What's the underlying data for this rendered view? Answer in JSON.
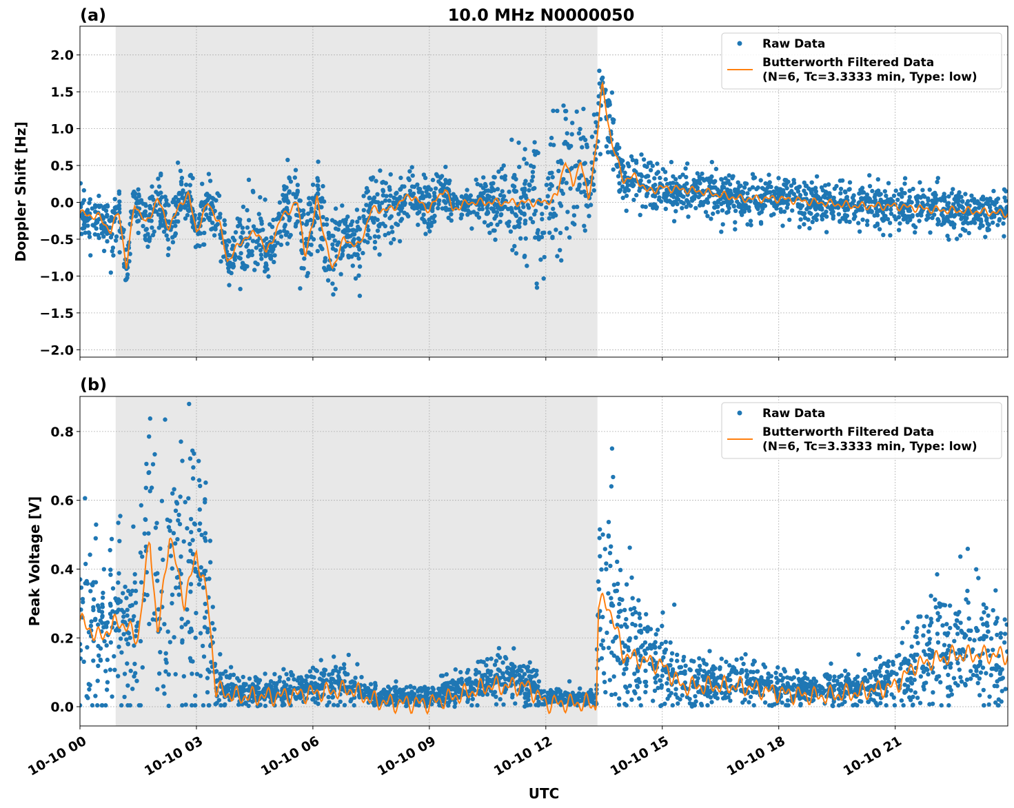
{
  "chart_data": [
    {
      "panel_label": "(a)",
      "type": "scatter+line",
      "title": "10.0 MHz N0000050",
      "xlabel": "",
      "ylabel": "Doppler Shift [Hz]",
      "xlim_hours": [
        0,
        23.9
      ],
      "ylim": [
        -2.1,
        2.39
      ],
      "yticks": [
        -2.0,
        -1.5,
        -1.0,
        -0.5,
        0.0,
        0.5,
        1.0,
        1.5,
        2.0
      ],
      "ytick_labels": [
        "−2.0",
        "−1.5",
        "−1.0",
        "−0.5",
        "0.0",
        "0.5",
        "1.0",
        "1.5",
        "2.0"
      ],
      "grid": true,
      "shaded_interval_hours": [
        0.92,
        13.33
      ],
      "legend": {
        "placement": "top-right",
        "entries": [
          "Raw Data",
          "Butterworth Filtered Data",
          "(N=6, Tc=3.3333 min, Type: low)"
        ]
      },
      "colors": {
        "raw": "#1f77b4",
        "filtered": "#ff7f0e",
        "shade": "#e8e8e8"
      },
      "filtered_series": {
        "x_hours": [
          0,
          0.5,
          0.8,
          1.0,
          1.2,
          1.4,
          1.7,
          2.0,
          2.3,
          2.6,
          2.8,
          3.0,
          3.3,
          3.6,
          3.8,
          4.2,
          4.6,
          4.8,
          5.2,
          5.6,
          5.8,
          6.0,
          6.1,
          6.3,
          6.5,
          6.8,
          7.2,
          7.5,
          8.0,
          8.5,
          9.0,
          9.4,
          9.6,
          10.0,
          11,
          12,
          12.3,
          12.5,
          12.7,
          12.9,
          13.1,
          13.3,
          13.45,
          13.7,
          14,
          14.3,
          14.6,
          15,
          16,
          17,
          18,
          19,
          20,
          21,
          22,
          23,
          23.9
        ],
        "y": [
          -0.15,
          -0.2,
          -0.4,
          -0.1,
          -0.9,
          0,
          -0.3,
          0.05,
          -0.35,
          0,
          0.1,
          -0.4,
          0,
          -0.3,
          -0.8,
          -0.5,
          -0.4,
          -0.7,
          -0.2,
          0,
          -0.7,
          -0.3,
          0.1,
          -0.5,
          -0.9,
          -0.5,
          -0.6,
          -0.1,
          -0.1,
          0.1,
          -0.1,
          0.2,
          -0.1,
          0,
          0,
          0,
          0.1,
          0.6,
          0.2,
          0.6,
          0,
          0.8,
          1.6,
          0.8,
          0.3,
          0.35,
          0.15,
          0.2,
          0.15,
          0.05,
          0.05,
          0,
          -0.05,
          -0.05,
          -0.1,
          -0.12,
          -0.15
        ]
      },
      "raw_spread": {
        "x_hours": [
          0,
          7,
          10,
          12,
          13.4,
          14,
          24
        ],
        "sigma": [
          0.15,
          0.3,
          0.1,
          0.5,
          0.3,
          0.15,
          0.15
        ]
      }
    },
    {
      "panel_label": "(b)",
      "type": "scatter+line",
      "xlabel": "UTC",
      "ylabel": "Peak Voltage [V]",
      "xlim_hours": [
        0,
        23.9
      ],
      "ylim": [
        -0.056,
        0.902
      ],
      "yticks": [
        0.0,
        0.2,
        0.4,
        0.6,
        0.8
      ],
      "ytick_labels": [
        "0.0",
        "0.2",
        "0.4",
        "0.6",
        "0.8"
      ],
      "grid": true,
      "shaded_interval_hours": [
        0.92,
        13.33
      ],
      "xticks_hours": [
        0,
        3,
        6,
        9,
        12,
        15,
        18,
        21
      ],
      "xtick_labels": [
        "10-10 00",
        "10-10 03",
        "10-10 06",
        "10-10 09",
        "10-10 12",
        "10-10 15",
        "10-10 18",
        "10-10 21"
      ],
      "legend": {
        "placement": "top-right",
        "entries": [
          "Raw Data",
          "Butterworth Filtered Data",
          "(N=6, Tc=3.3333 min, Type: low)"
        ]
      },
      "colors": {
        "raw": "#1f77b4",
        "filtered": "#ff7f0e",
        "shade": "#e8e8e8"
      },
      "filtered_series": {
        "x_hours": [
          0,
          0.5,
          1,
          1.5,
          1.8,
          2.0,
          2.3,
          2.7,
          3.0,
          3.3,
          3.5,
          4,
          5,
          6,
          7,
          7.5,
          8,
          9,
          10,
          10.5,
          11.5,
          12,
          13.2,
          13.3,
          13.35,
          13.6,
          14,
          15,
          15.5,
          17,
          18,
          19,
          20,
          21,
          21.5,
          22.5,
          23.9
        ],
        "y": [
          0.25,
          0.2,
          0.25,
          0.2,
          0.5,
          0.2,
          0.5,
          0.3,
          0.45,
          0.3,
          0.05,
          0.03,
          0.03,
          0.04,
          0.05,
          0.02,
          0.01,
          0.01,
          0.04,
          0.06,
          0.06,
          0.01,
          0.01,
          -0.01,
          0.3,
          0.3,
          0.15,
          0.12,
          0.06,
          0.06,
          0.04,
          0.03,
          0.04,
          0.06,
          0.12,
          0.15,
          0.15
        ]
      },
      "raw_spread_relative": 0.6
    }
  ]
}
